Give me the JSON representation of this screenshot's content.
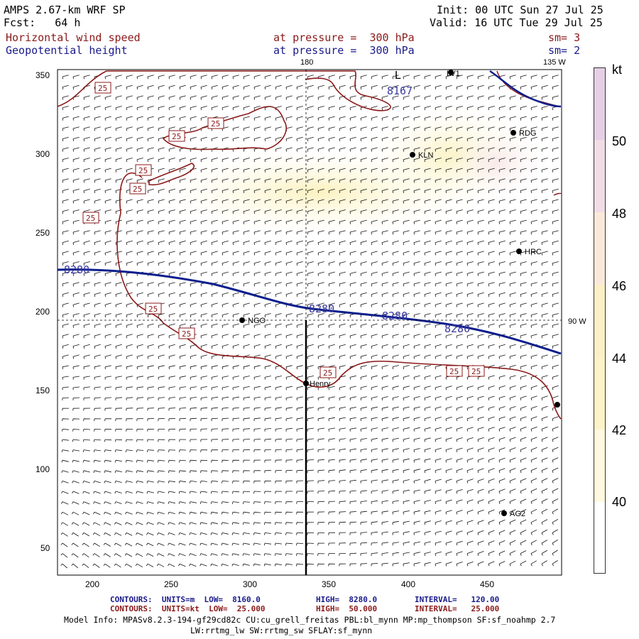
{
  "header": {
    "model": "AMPS 2.67-km WRF SP",
    "fcst": "Fcst:   64 h",
    "init": "Init: 00 UTC Sun 27 Jul 25",
    "valid": "Valid: 16 UTC Tue 29 Jul 25",
    "field1": "Horizontal wind speed",
    "field2": "Geopotential height",
    "level1": "at pressure =  300 hPa",
    "level2": "at pressure =  300 hPa",
    "sm1": "sm= 3",
    "sm2": "sm= 2"
  },
  "map": {
    "lon_labels": {
      "top_180": "180",
      "top_135w": "135 W",
      "right_90w": "90 W"
    },
    "x_ticks": [
      "200",
      "250",
      "300",
      "350",
      "400",
      "450"
    ],
    "y_ticks": [
      "350",
      "300",
      "250",
      "200",
      "150",
      "100",
      "50"
    ],
    "stations": [
      "KLN",
      "RDG",
      "HRC",
      "NGO",
      "Henry",
      "AG2"
    ],
    "contour_labels_height": [
      "8167",
      "8280",
      "8280",
      "8280",
      "8280"
    ],
    "contour_labels_speed": [
      "25",
      "25",
      "25",
      "25",
      "25",
      "25",
      "25",
      "25",
      "25",
      "25",
      "25"
    ],
    "low_marker": "L",
    "station_marker_top": "LV1"
  },
  "colorbar": {
    "unit": "kt",
    "labels": [
      "50",
      "48",
      "46",
      "44",
      "42",
      "40"
    ],
    "colors": [
      "#e7d2e8",
      "#f2dfe6",
      "#fbecd6",
      "#fbf0c8",
      "#fdf7cd",
      "#fffbe6",
      "#ffffff"
    ]
  },
  "footer": {
    "line1_a": "CONTOURS:  UNITS=m  LOW=  8160.0",
    "line1_b": "HIGH=  8280.0",
    "line1_c": "INTERVAL=   120.00",
    "line2_a": "CONTOURS:  UNITS=kt  LOW=  25.000",
    "line2_b": "HIGH=  50.000",
    "line2_c": "INTERVAL=   25.000",
    "model_info": "Model Info: MPASv8.2.3-194-gf29cd82c CU:cu_grell_freitas PBL:bl_mynn MP:mp_thompson SF:sf_noahmp 2.7",
    "model_info2": "LW:rrtmg_lw SW:rrtmg_sw SFLAY:sf_mynn"
  }
}
